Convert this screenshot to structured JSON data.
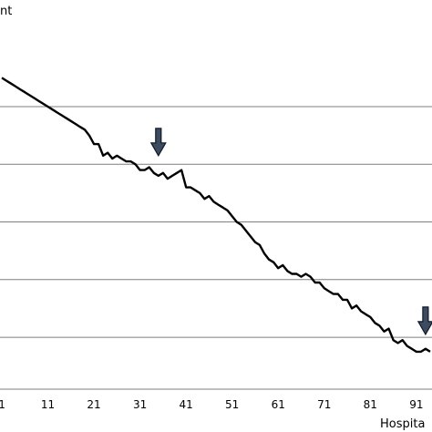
{
  "chart_data": {
    "type": "line",
    "title": "",
    "ylabel_fragment": "nt",
    "xlabel_fragment": "Hospita",
    "x_ticks": [
      "1",
      "11",
      "21",
      "31",
      "41",
      "51",
      "61",
      "71",
      "81",
      "91"
    ],
    "xlim": [
      1,
      94
    ],
    "grid": true,
    "legend": "none",
    "series": [
      {
        "color": "#000000",
        "x": [
          1,
          2,
          3,
          4,
          5,
          6,
          7,
          8,
          9,
          10,
          11,
          12,
          13,
          14,
          15,
          16,
          17,
          18,
          19,
          20,
          21,
          22,
          23,
          24,
          25,
          26,
          27,
          28,
          29,
          30,
          31,
          32,
          33,
          34,
          35,
          36,
          37,
          38,
          39,
          40,
          41,
          42,
          43,
          44,
          45,
          46,
          47,
          48,
          49,
          50,
          51,
          52,
          53,
          54,
          55,
          56,
          57,
          58,
          59,
          60,
          61,
          62,
          63,
          64,
          65,
          66,
          67,
          68,
          69,
          70,
          71,
          72,
          73,
          74,
          75,
          76,
          77,
          78,
          79,
          80,
          81,
          82,
          83,
          84,
          85,
          86,
          87,
          88,
          89,
          90,
          91,
          92,
          93,
          94
        ],
        "y": [
          0.97,
          0.96,
          0.95,
          0.94,
          0.93,
          0.92,
          0.91,
          0.9,
          0.89,
          0.88,
          0.87,
          0.86,
          0.85,
          0.84,
          0.83,
          0.82,
          0.81,
          0.8,
          0.79,
          0.77,
          0.74,
          0.74,
          0.7,
          0.71,
          0.69,
          0.7,
          0.69,
          0.68,
          0.68,
          0.67,
          0.65,
          0.65,
          0.66,
          0.64,
          0.63,
          0.64,
          0.62,
          0.63,
          0.64,
          0.65,
          0.59,
          0.59,
          0.58,
          0.57,
          0.55,
          0.56,
          0.54,
          0.53,
          0.52,
          0.51,
          0.49,
          0.47,
          0.46,
          0.44,
          0.42,
          0.4,
          0.39,
          0.36,
          0.34,
          0.33,
          0.31,
          0.32,
          0.3,
          0.29,
          0.29,
          0.28,
          0.29,
          0.28,
          0.26,
          0.26,
          0.24,
          0.23,
          0.22,
          0.22,
          0.2,
          0.2,
          0.17,
          0.18,
          0.16,
          0.15,
          0.14,
          0.12,
          0.11,
          0.09,
          0.1,
          0.06,
          0.05,
          0.06,
          0.04,
          0.03,
          0.02,
          0.02,
          0.03,
          0.02
        ],
        "gridline_values": [
          0.87,
          0.67,
          0.47,
          0.27,
          0.07
        ],
        "ylim": [
          -0.11,
          1.24
        ]
      }
    ],
    "annotations": [
      {
        "type": "arrow",
        "x": 35,
        "y": 0.7,
        "icon": "down-arrow-icon",
        "color": "#3c4b5f"
      },
      {
        "type": "arrow",
        "x": 93,
        "y": 0.08,
        "icon": "down-arrow-icon",
        "color": "#3c4b5f"
      }
    ]
  }
}
